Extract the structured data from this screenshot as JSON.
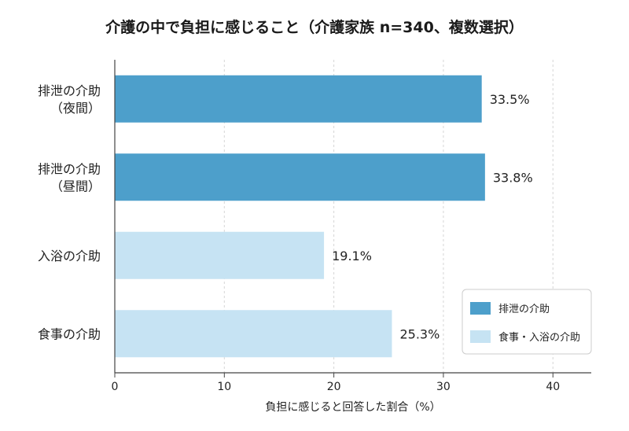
{
  "chart_data": {
    "type": "bar",
    "orientation": "horizontal",
    "title": "介護の中で負担に感じること（介護家族 n=340、複数選択）",
    "xlabel": "負担に感じると回答した割合（%）",
    "ylabel": "",
    "xlim": [
      0,
      43.5
    ],
    "xticks": [
      0,
      10,
      20,
      30,
      40
    ],
    "grid": "vertical-dashed",
    "legend_position": "bottom-right",
    "categories": [
      [
        "排泄の介助",
        "（夜間）"
      ],
      [
        "排泄の介助",
        "（昼間）"
      ],
      [
        "入浴の介助"
      ],
      [
        "食事の介助"
      ]
    ],
    "values": [
      33.5,
      33.8,
      19.1,
      25.3
    ],
    "value_labels": [
      "33.5%",
      "33.8%",
      "19.1%",
      "25.3%"
    ],
    "bar_groups": [
      0,
      0,
      1,
      1
    ],
    "legend": [
      {
        "name": "排泄の介助",
        "color": "#4d9fcb"
      },
      {
        "name": "食事・入浴の介助",
        "color": "#c6e3f3"
      }
    ]
  }
}
